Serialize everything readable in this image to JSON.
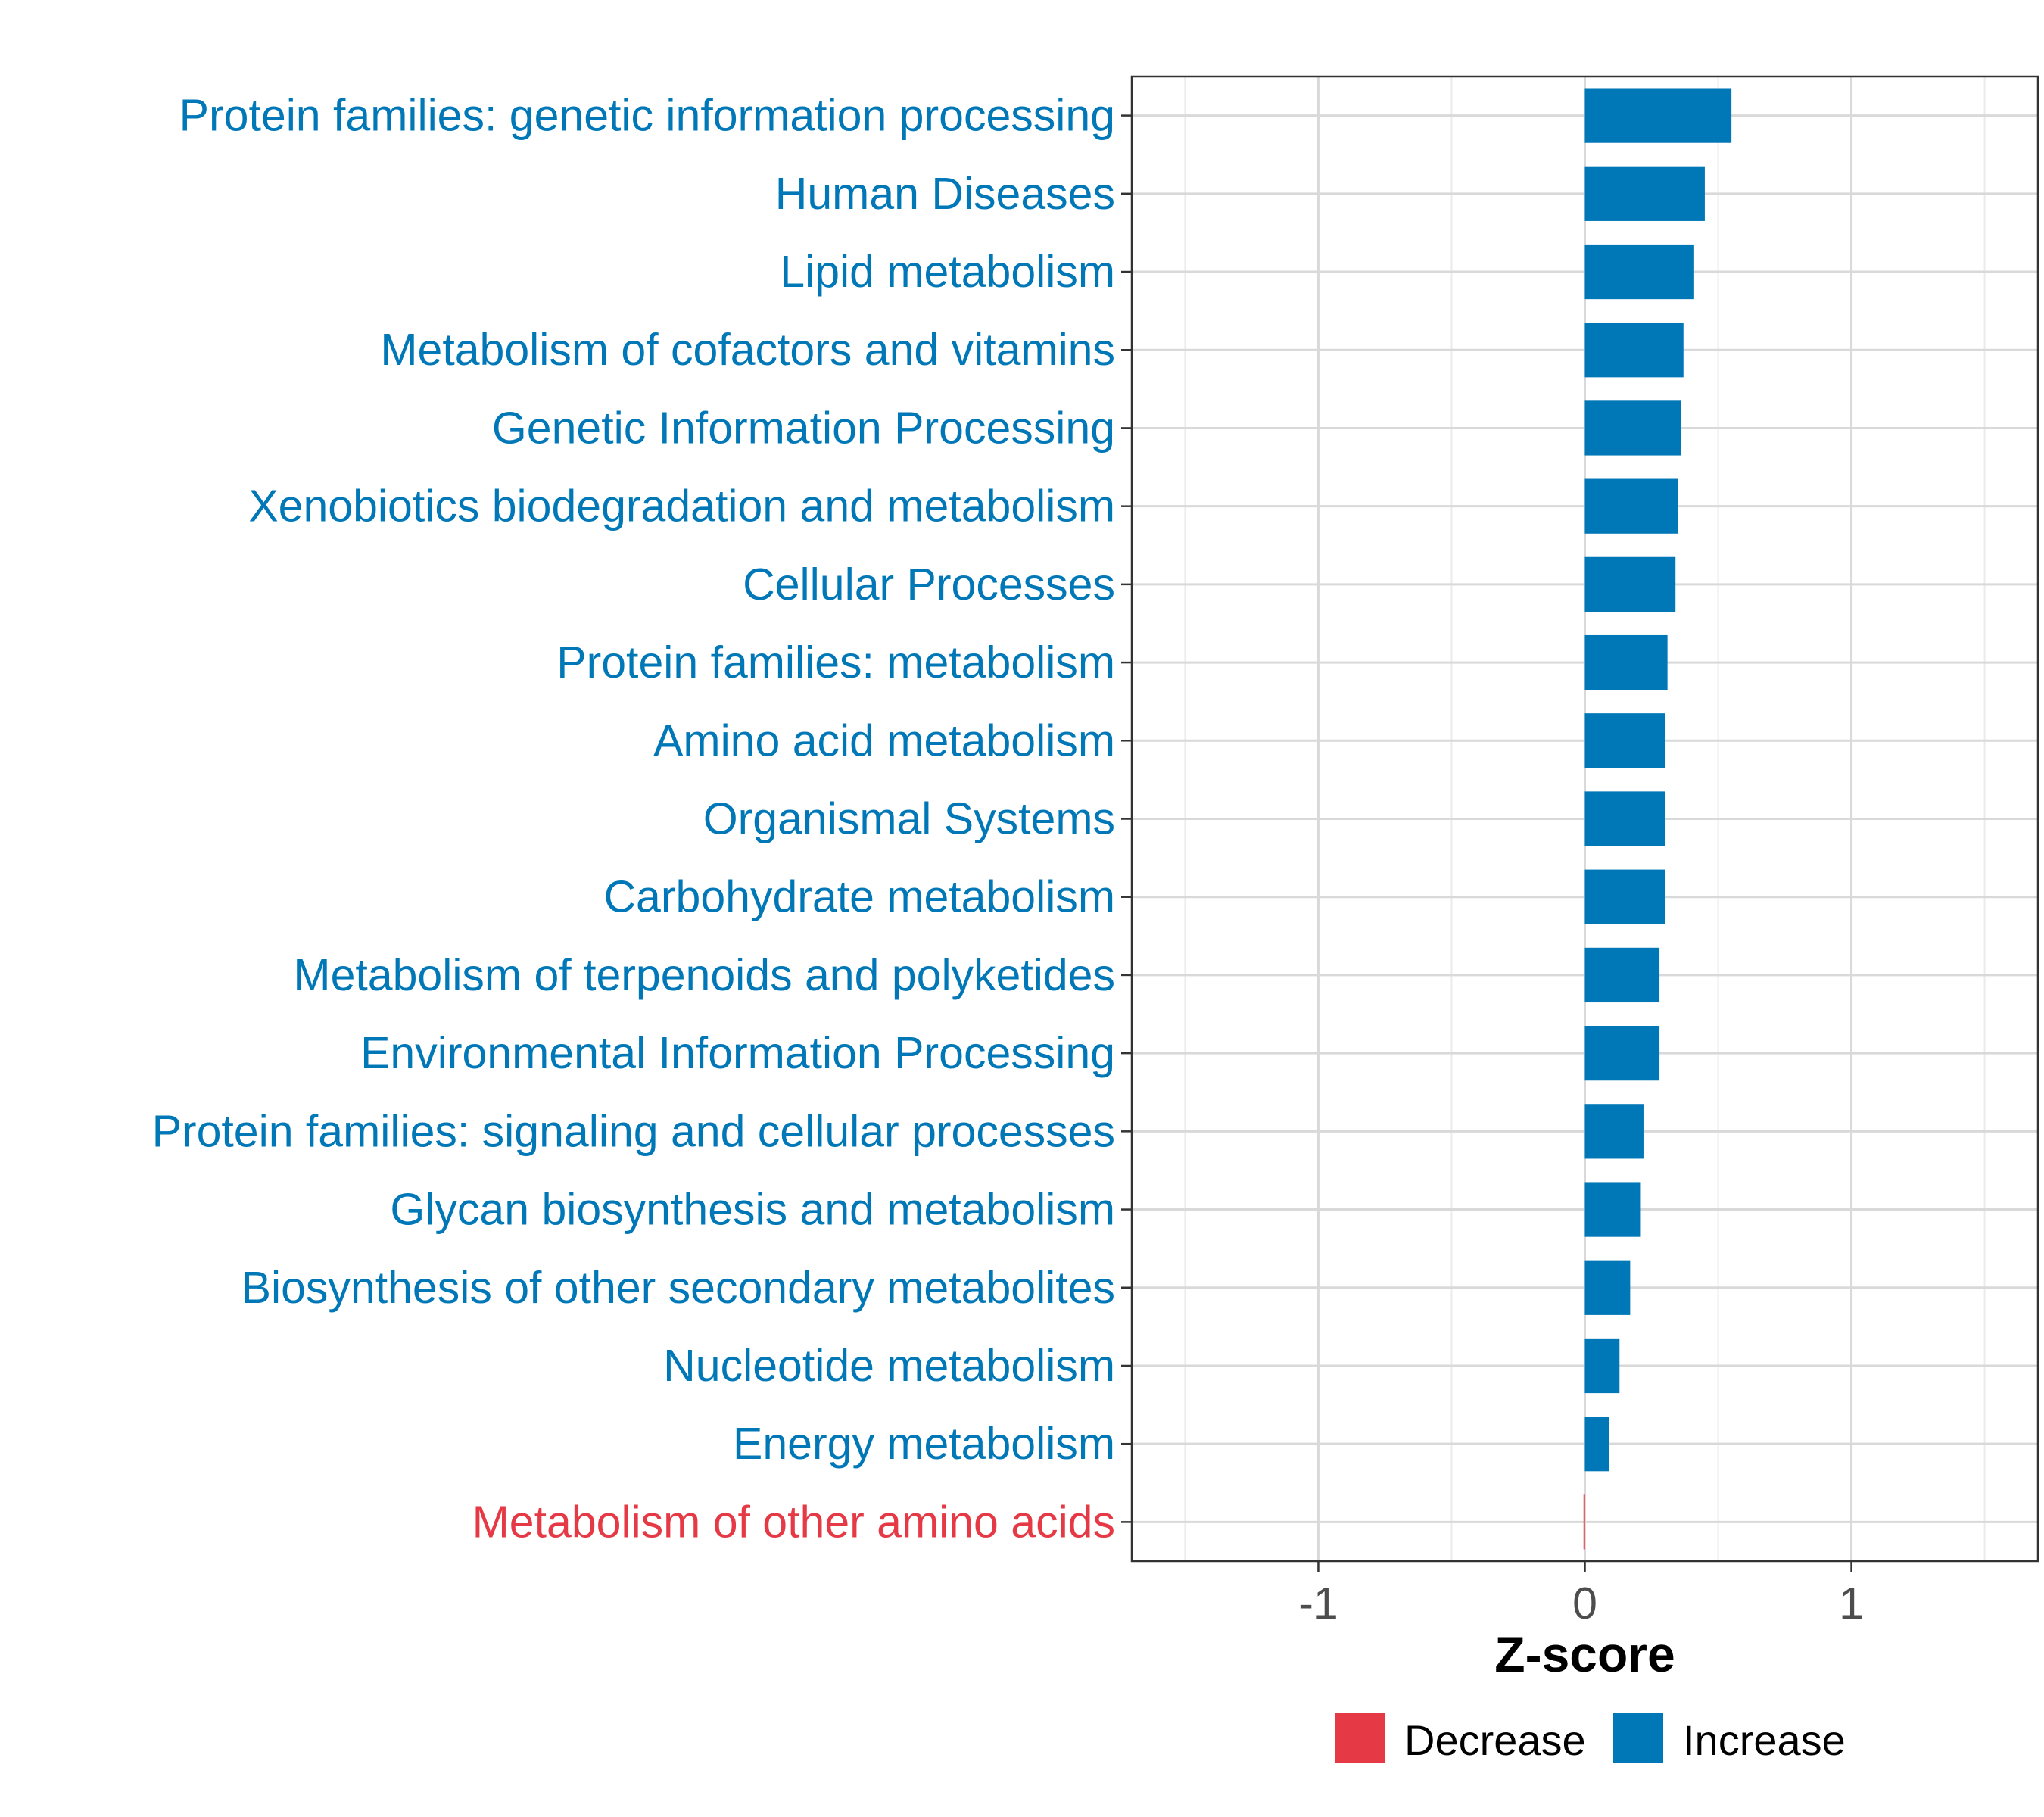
{
  "chart_data": {
    "type": "bar",
    "orientation": "horizontal",
    "title": "",
    "xlabel": "Z-score",
    "ylabel": "",
    "xlim": [
      -1.7,
      1.7
    ],
    "xticks": [
      -1,
      0,
      1
    ],
    "xtick_labels": [
      "-1",
      "0",
      "1"
    ],
    "grid": true,
    "legend_position": "bottom",
    "categories": [
      "Protein families: genetic information processing",
      "Human Diseases",
      "Lipid metabolism",
      "Metabolism of cofactors and vitamins",
      "Genetic Information Processing",
      "Xenobiotics biodegradation and metabolism",
      "Cellular Processes",
      "Protein families: metabolism",
      "Amino acid metabolism",
      "Organismal Systems",
      "Carbohydrate metabolism",
      "Metabolism of terpenoids and polyketides",
      "Environmental Information Processing",
      "Protein families: signaling and cellular processes",
      "Glycan biosynthesis and metabolism",
      "Biosynthesis of other secondary metabolites",
      "Nucleotide metabolism",
      "Energy metabolism",
      "Metabolism of other amino acids"
    ],
    "values": [
      0.55,
      0.45,
      0.41,
      0.37,
      0.36,
      0.35,
      0.34,
      0.31,
      0.3,
      0.3,
      0.3,
      0.28,
      0.28,
      0.22,
      0.21,
      0.17,
      0.13,
      0.09,
      -0.005
    ],
    "groups": [
      "Increase",
      "Increase",
      "Increase",
      "Increase",
      "Increase",
      "Increase",
      "Increase",
      "Increase",
      "Increase",
      "Increase",
      "Increase",
      "Increase",
      "Increase",
      "Increase",
      "Increase",
      "Increase",
      "Increase",
      "Increase",
      "Decrease"
    ],
    "legend": [
      {
        "label": "Decrease",
        "color": "#e63946"
      },
      {
        "label": "Increase",
        "color": "#0077b6"
      }
    ],
    "colors": {
      "Decrease": "#e63946",
      "Increase": "#0077b6"
    }
  }
}
